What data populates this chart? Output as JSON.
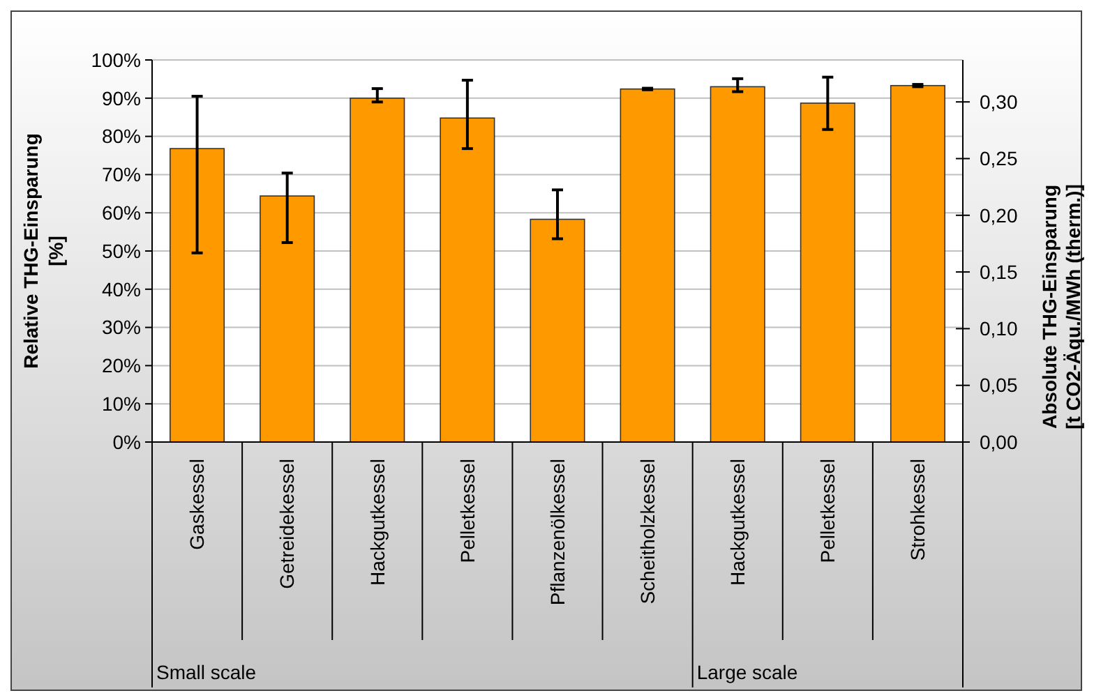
{
  "chart_data": {
    "type": "bar",
    "ylabel": "Relative THG-Einsparung\n[%]",
    "y2label": "Absolute THG-Einsparung\n[t CO2-Äqu./MWh (therm.)]",
    "categories": [
      "Gaskessel",
      "Getreidekessel",
      "Hackgutkessel",
      "Pelletkessel",
      "Pflanzenölkessel",
      "Scheitholzkessel",
      "Hackgutkessel",
      "Pelletkessel",
      "Strohkessel"
    ],
    "values": [
      76.8,
      64.4,
      90.0,
      84.8,
      58.3,
      92.4,
      93.0,
      88.7,
      93.3
    ],
    "errors": [
      [
        49.5,
        90.5
      ],
      [
        52.2,
        70.4
      ],
      [
        89.0,
        92.5
      ],
      [
        76.8,
        94.7
      ],
      [
        53.2,
        66.0
      ],
      [
        92.2,
        92.6
      ],
      [
        91.7,
        95.1
      ],
      [
        81.8,
        95.5
      ],
      [
        93.0,
        93.6
      ]
    ],
    "color": "#ff9900",
    "ylim": [
      0,
      100
    ],
    "yticks": [
      {
        "value": 0,
        "label": "0%"
      },
      {
        "value": 10,
        "label": "10%"
      },
      {
        "value": 20,
        "label": "20%"
      },
      {
        "value": 30,
        "label": "30%"
      },
      {
        "value": 40,
        "label": "40%"
      },
      {
        "value": 50,
        "label": "50%"
      },
      {
        "value": 60,
        "label": "60%"
      },
      {
        "value": 70,
        "label": "70%"
      },
      {
        "value": 80,
        "label": "80%"
      },
      {
        "value": 90,
        "label": "90%"
      },
      {
        "value": 100,
        "label": "100%"
      }
    ],
    "y2lim": [
      0,
      0.337
    ],
    "y2ticks": [
      {
        "value": 0,
        "label": "0,00"
      },
      {
        "value": 0.05,
        "label": "0,05"
      },
      {
        "value": 0.1,
        "label": "0,10"
      },
      {
        "value": 0.15,
        "label": "0,15"
      },
      {
        "value": 0.2,
        "label": "0,20"
      },
      {
        "value": 0.25,
        "label": "0,25"
      },
      {
        "value": 0.3,
        "label": "0,30"
      }
    ],
    "grid": "y",
    "annotations": [
      "Small scale",
      "Large scale"
    ]
  }
}
